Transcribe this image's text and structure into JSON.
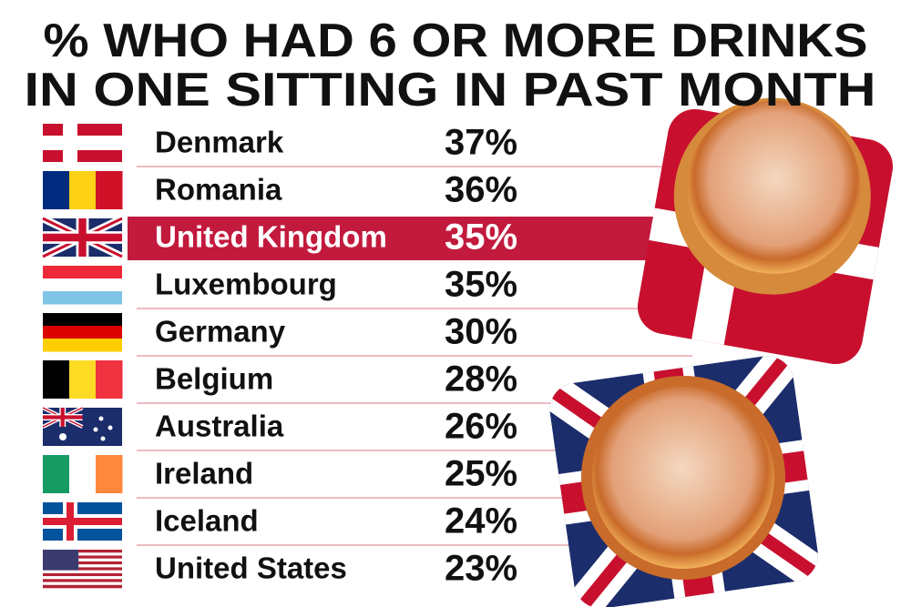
{
  "header": {
    "title_lines": [
      "% WHO HAD 6 OR MORE DRINKS",
      "IN ONE SITTING IN PAST MONTH"
    ]
  },
  "table": {
    "highlight_row": 2,
    "rows": [
      [
        "Denmark",
        "37%"
      ],
      [
        "Romania",
        "36%"
      ],
      [
        "United Kingdom",
        "35%"
      ],
      [
        "Luxembourg",
        "35%"
      ],
      [
        "Germany",
        "30%"
      ],
      [
        "Belgium",
        "28%"
      ],
      [
        "Australia",
        "26%"
      ],
      [
        "Ireland",
        "25%"
      ],
      [
        "Iceland",
        "24%"
      ],
      [
        "United States",
        "23%"
      ]
    ]
  }
}
